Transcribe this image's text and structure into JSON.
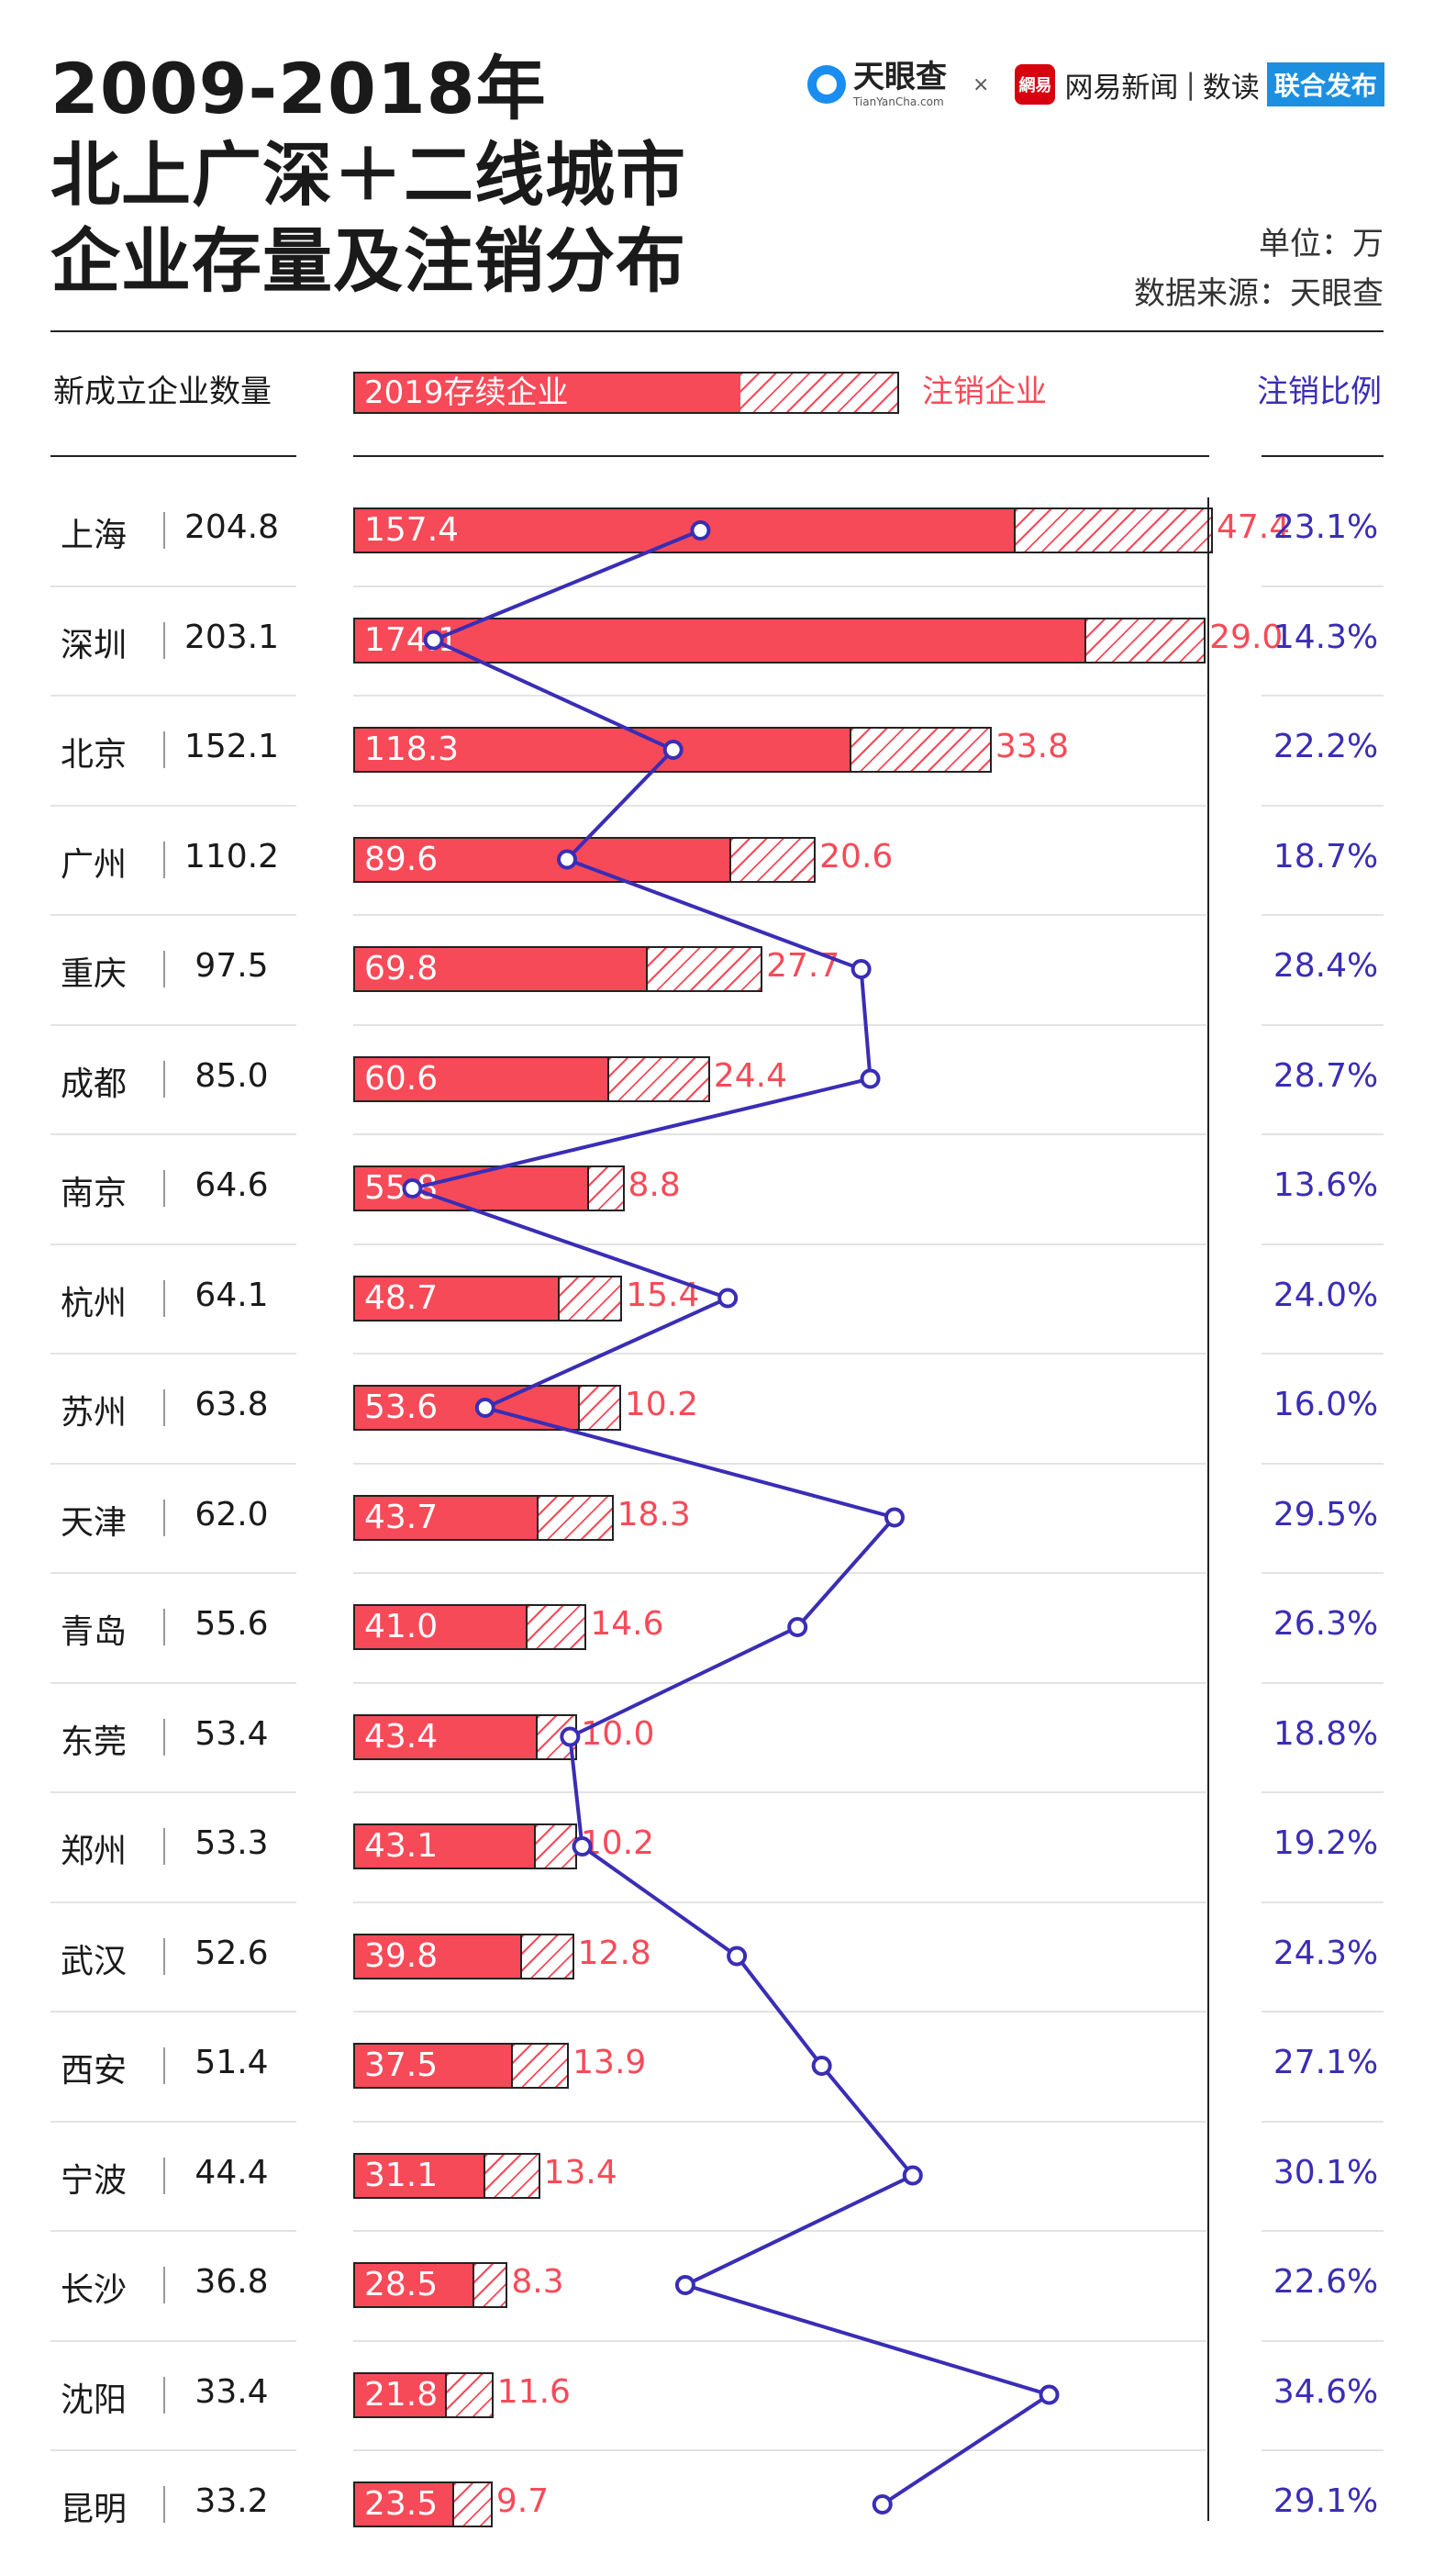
{
  "title": {
    "line1": "2009-2018年",
    "line2": "北上广深＋二线城市",
    "line3": "企业存量及注销分布"
  },
  "brand": {
    "tianyancha_cn": "天眼查",
    "tianyancha_en": "TianYanCha.com",
    "times": "×",
    "netease_logo": "網易",
    "netease_name": "网易新闻",
    "separator": "|",
    "netease_column": "数读",
    "badge": "联合发布"
  },
  "unit": "单位：万",
  "source": "数据来源：天眼查",
  "headers": {
    "new_count": "新成立企业数量",
    "surviving": "2019存续企业",
    "cancelled": "注销企业",
    "ratio": "注销比例"
  },
  "colors": {
    "surviving": "#f74a58",
    "cancelled": "#f74a58",
    "ratio_line": "#3a2db5"
  },
  "chart_data": {
    "type": "bar",
    "stacked": true,
    "orientation": "horizontal",
    "title": "2009-2018年北上广深＋二线城市企业存量及注销分布",
    "unit": "万",
    "categories": [
      "上海",
      "深圳",
      "北京",
      "广州",
      "重庆",
      "成都",
      "南京",
      "杭州",
      "苏州",
      "天津",
      "青岛",
      "东莞",
      "郑州",
      "武汉",
      "西安",
      "宁波",
      "长沙",
      "沈阳",
      "昆明"
    ],
    "new_established": [
      "204.8",
      "203.1",
      "152.1",
      "110.2",
      "97.5",
      "85.0",
      "64.6",
      "64.1",
      "63.8",
      "62.0",
      "55.6",
      "53.4",
      "53.3",
      "52.6",
      "51.4",
      "44.4",
      "36.8",
      "33.4",
      "33.2"
    ],
    "series": [
      {
        "name": "2019存续企业",
        "values": [
          "157.4",
          "174.1",
          "118.3",
          "89.6",
          "69.8",
          "60.6",
          "55.8",
          "48.7",
          "53.6",
          "43.7",
          "41.0",
          "43.4",
          "43.1",
          "39.8",
          "37.5",
          "31.1",
          "28.5",
          "21.8",
          "23.5"
        ]
      },
      {
        "name": "注销企业",
        "values": [
          "47.4",
          "29.0",
          "33.8",
          "20.6",
          "27.7",
          "24.4",
          "8.8",
          "15.4",
          "10.2",
          "18.3",
          "14.6",
          "10.0",
          "10.2",
          "12.8",
          "13.9",
          "13.4",
          "8.3",
          "11.6",
          "9.7"
        ]
      },
      {
        "name": "注销比例",
        "type": "line",
        "values": [
          "23.1%",
          "14.3%",
          "22.2%",
          "18.7%",
          "28.4%",
          "28.7%",
          "13.6%",
          "24.0%",
          "16.0%",
          "29.5%",
          "26.3%",
          "18.8%",
          "19.2%",
          "24.3%",
          "27.1%",
          "30.1%",
          "22.6%",
          "34.6%",
          "29.1%"
        ]
      }
    ],
    "xlim": [
      0,
      210
    ],
    "ratio_lim": [
      0,
      0.4
    ]
  }
}
